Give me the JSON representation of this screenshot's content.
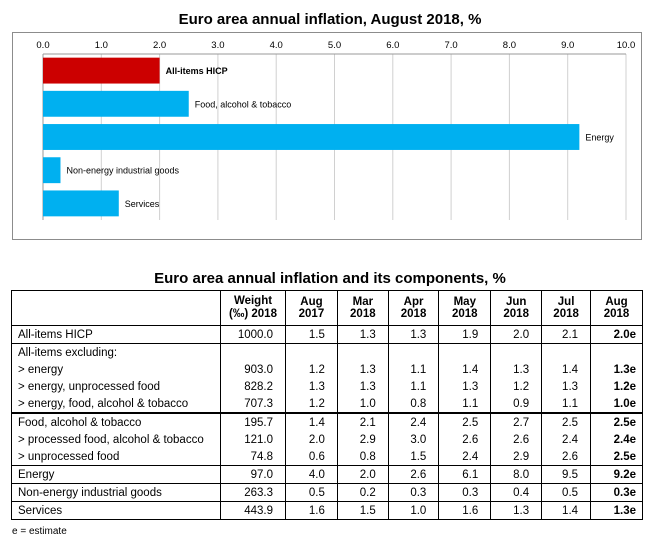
{
  "chart_data": {
    "type": "bar",
    "orientation": "horizontal",
    "title": "Euro area annual inflation, August 2018, %",
    "categories": [
      "All-items HICP",
      "Food, alcohol & tobacco",
      "Energy",
      "Non-energy industrial goods",
      "Services"
    ],
    "values": [
      2.0,
      2.5,
      9.2,
      0.3,
      1.3
    ],
    "colors": [
      "#cc0000",
      "#00b0f0",
      "#00b0f0",
      "#00b0f0",
      "#00b0f0"
    ],
    "bold_categories": [
      "All-items HICP"
    ],
    "xlim": [
      0,
      10
    ],
    "xticks": [
      "0.0",
      "1.0",
      "2.0",
      "3.0",
      "4.0",
      "5.0",
      "6.0",
      "7.0",
      "8.0",
      "9.0",
      "10.0"
    ],
    "xaxis_position": "top",
    "grid": true
  },
  "table": {
    "title": "Euro area annual inflation and its components, %",
    "headers": [
      "",
      "Weight (‰) 2018",
      "Aug 2017",
      "Mar 2018",
      "Apr 2018",
      "May 2018",
      "Jun 2018",
      "Jul 2018",
      "Aug 2018"
    ],
    "rows": [
      [
        "All-items HICP",
        "1000.0",
        "1.5",
        "1.3",
        "1.3",
        "1.9",
        "2.0",
        "2.1",
        "2.0e"
      ],
      [
        "All-items excluding:",
        "",
        "",
        "",
        "",
        "",
        "",
        "",
        ""
      ],
      [
        "> energy",
        "903.0",
        "1.2",
        "1.3",
        "1.1",
        "1.4",
        "1.3",
        "1.4",
        "1.3e"
      ],
      [
        "> energy, unprocessed food",
        "828.2",
        "1.3",
        "1.3",
        "1.1",
        "1.3",
        "1.2",
        "1.3",
        "1.2e"
      ],
      [
        "> energy, food, alcohol & tobacco",
        "707.3",
        "1.2",
        "1.0",
        "0.8",
        "1.1",
        "0.9",
        "1.1",
        "1.0e"
      ],
      [
        "Food, alcohol & tobacco",
        "195.7",
        "1.4",
        "2.1",
        "2.4",
        "2.5",
        "2.7",
        "2.5",
        "2.5e"
      ],
      [
        "> processed food, alcohol & tobacco",
        "121.0",
        "2.0",
        "2.9",
        "3.0",
        "2.6",
        "2.6",
        "2.4",
        "2.4e"
      ],
      [
        "> unprocessed food",
        "74.8",
        "0.6",
        "0.8",
        "1.5",
        "2.4",
        "2.9",
        "2.6",
        "2.5e"
      ],
      [
        "Energy",
        "97.0",
        "4.0",
        "2.0",
        "2.6",
        "6.1",
        "8.0",
        "9.5",
        "9.2e"
      ],
      [
        "Non-energy industrial goods",
        "263.3",
        "0.5",
        "0.2",
        "0.3",
        "0.3",
        "0.4",
        "0.5",
        "0.3e"
      ],
      [
        "Services",
        "443.9",
        "1.6",
        "1.5",
        "1.0",
        "1.6",
        "1.3",
        "1.4",
        "1.3e"
      ]
    ]
  },
  "footnote": "e = estimate"
}
